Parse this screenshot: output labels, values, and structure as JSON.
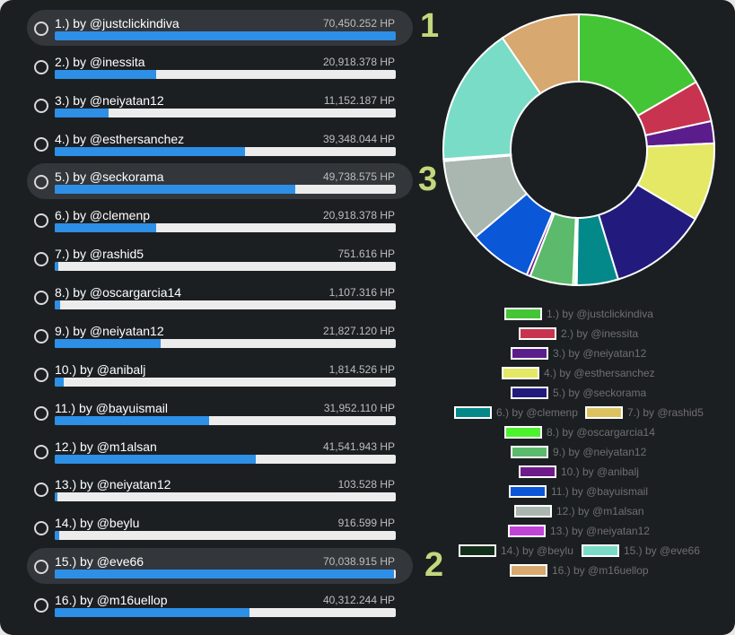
{
  "entries": [
    {
      "label": "1.) by @justclickindiva",
      "value": "70,450.252 HP",
      "hp": 70450.252,
      "color": "#44c535",
      "legend": "1.) by @justclickindiva"
    },
    {
      "label": "2.) by @inessita",
      "value": "20,918.378 HP",
      "hp": 20918.378,
      "color": "#c8344f",
      "legend": "2.) by @inessita"
    },
    {
      "label": "3.) by @neiyatan12",
      "value": "11,152.187 HP",
      "hp": 11152.187,
      "color": "#5b1d8c",
      "legend": "3.) by @neiyatan12"
    },
    {
      "label": "4.) by @esthersanchez",
      "value": "39,348.044 HP",
      "hp": 39348.044,
      "color": "#e4e865",
      "legend": "4.) by @esthersanchez"
    },
    {
      "label": "5.) by @seckorama",
      "value": "49,738.575 HP",
      "hp": 49738.575,
      "color": "#221b7d",
      "legend": "5.) by @seckorama"
    },
    {
      "label": "6.) by @clemenp",
      "value": "20,918.378 HP",
      "hp": 20918.378,
      "color": "#03898a",
      "legend": "6.) by @clemenp"
    },
    {
      "label": "7.) by @rashid5",
      "value": "751.616 HP",
      "hp": 751.616,
      "color": "#dcc35e",
      "legend": "7.) by @rashid5"
    },
    {
      "label": "8.) by @oscargarcia14",
      "value": "1,107.316 HP",
      "hp": 1107.316,
      "color": "#4cf32d",
      "legend": "8.) by @oscargarcia14"
    },
    {
      "label": "9.) by @neiyatan12",
      "value": "21,827.120 HP",
      "hp": 21827.12,
      "color": "#5bba6b",
      "legend": "9.) by @neiyatan12"
    },
    {
      "label": "10.) by @anibalj",
      "value": "1,814.526 HP",
      "hp": 1814.526,
      "color": "#6f1a8b",
      "legend": "10.) by @anibalj"
    },
    {
      "label": "11.) by @bayuismail",
      "value": "31,952.110 HP",
      "hp": 31952.11,
      "color": "#0a57d8",
      "legend": "11.) by @bayuismail"
    },
    {
      "label": "12.) by @m1alsan",
      "value": "41,541.943 HP",
      "hp": 41541.943,
      "color": "#aab7b0",
      "legend": "12.) by @m1alsan"
    },
    {
      "label": "13.) by @neiyatan12",
      "value": "103.528 HP",
      "hp": 103.528,
      "color": "#c144d9",
      "legend": "13.) by @neiyatan12"
    },
    {
      "label": "14.) by @beylu",
      "value": "916.599 HP",
      "hp": 916.599,
      "color": "#123019",
      "legend": "14.) by @beylu"
    },
    {
      "label": "15.) by @eve66",
      "value": "70,038.915 HP",
      "hp": 70038.915,
      "color": "#79dcc7",
      "legend": "15.) by @eve66"
    },
    {
      "label": "16.) by @m16uellop",
      "value": "40,312.244 HP",
      "hp": 40312.244,
      "color": "#d7a86f",
      "legend": "16.) by @m16uellop"
    }
  ],
  "max_hp": 70450.252,
  "markers": [
    "1",
    "3",
    "2"
  ]
}
